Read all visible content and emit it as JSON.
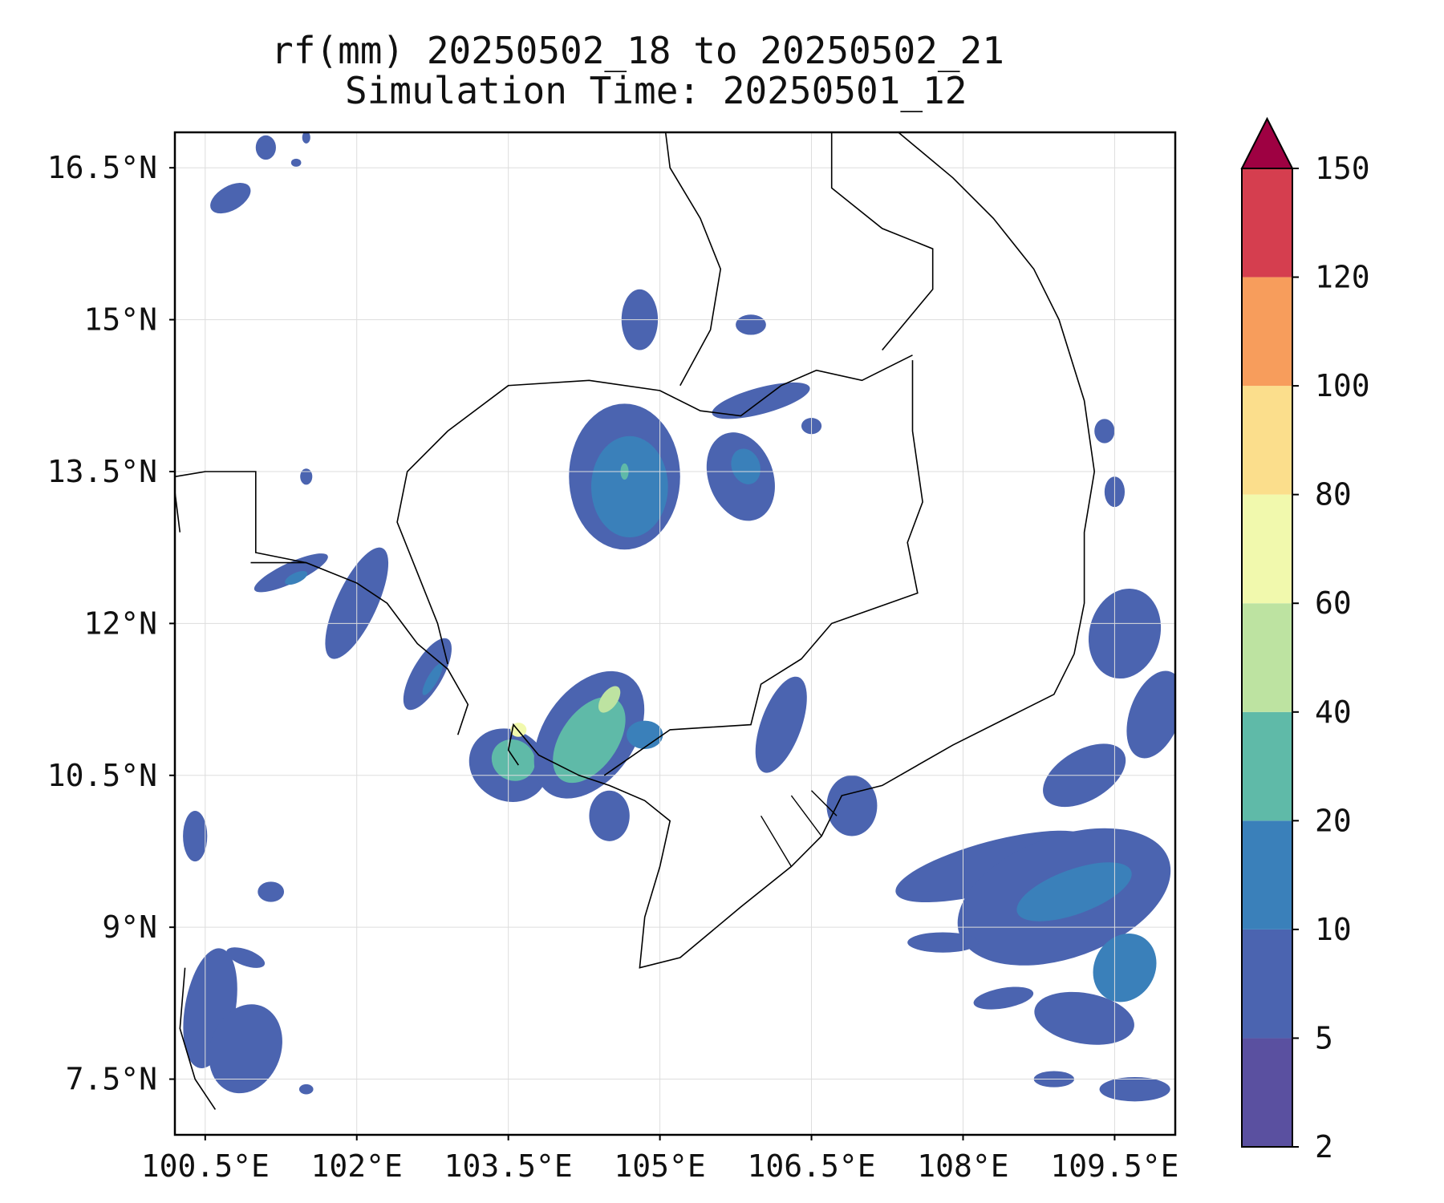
{
  "title": {
    "line1": "rf(mm) 20250502_18 to 20250502_21",
    "line2": "Simulation Time: 20250501_12"
  },
  "map": {
    "lon_range": [
      100.2,
      110.1
    ],
    "lat_range": [
      6.95,
      16.85
    ],
    "lon_ticks": [
      "100.5°E",
      "102°E",
      "103.5°E",
      "105°E",
      "106.5°E",
      "108°E",
      "109.5°E"
    ],
    "lon_tick_values": [
      100.5,
      102,
      103.5,
      105,
      106.5,
      108,
      109.5
    ],
    "lat_ticks": [
      "16.5°N",
      "15°N",
      "13.5°N",
      "12°N",
      "10.5°N",
      "9°N",
      "7.5°N"
    ],
    "lat_tick_values": [
      16.5,
      15,
      13.5,
      12,
      10.5,
      9,
      7.5
    ],
    "gridlines": true,
    "coastline_color": "#000000"
  },
  "colorbar": {
    "levels": [
      2,
      5,
      10,
      20,
      40,
      60,
      80,
      100,
      120,
      150
    ],
    "tick_labels": [
      "2",
      "5",
      "10",
      "20",
      "40",
      "60",
      "80",
      "100",
      "120",
      "150"
    ],
    "colors": [
      "#5a50a0",
      "#4b64b0",
      "#3a80ba",
      "#5fbaa8",
      "#bde3a1",
      "#f1f9ad",
      "#fbde8c",
      "#f79d5c",
      "#d53e4f"
    ],
    "extend_color": "#9e0142",
    "extend": "max"
  }
}
